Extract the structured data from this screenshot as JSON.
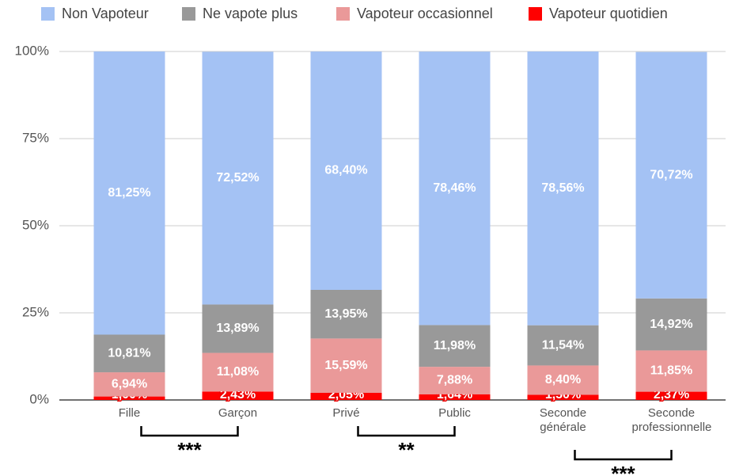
{
  "chart_data": {
    "type": "stacked_bar",
    "categories": [
      "Fille",
      "Garçon",
      "Privé",
      "Public",
      "Seconde générale",
      "Seconde professionnelle"
    ],
    "series": [
      {
        "name": "Non Vapoteur",
        "color": "#a4c2f4",
        "values": [
          81.25,
          72.52,
          68.4,
          78.46,
          78.56,
          70.72
        ],
        "value_labels": [
          "81,25%",
          "72,52%",
          "68,40%",
          "78,46%",
          "78,56%",
          "70,72%"
        ]
      },
      {
        "name": "Ne vapote plus",
        "color": "#999999",
        "values": [
          10.81,
          13.89,
          13.95,
          11.98,
          11.54,
          14.92
        ],
        "value_labels": [
          "10,81%",
          "13,89%",
          "13,95%",
          "11,98%",
          "11,54%",
          "14,92%"
        ]
      },
      {
        "name": "Vapoteur occasionnel",
        "color": "#ea9999",
        "values": [
          6.94,
          11.08,
          15.59,
          7.88,
          8.4,
          11.85
        ],
        "value_labels": [
          "6,94%",
          "11,08%",
          "15,59%",
          "7,88%",
          "8,40%",
          "11,85%"
        ]
      },
      {
        "name": "Vapoteur quotidien",
        "color": "#ff0000",
        "values": [
          1.0,
          2.43,
          2.05,
          1.64,
          1.5,
          2.37
        ],
        "value_labels": [
          "1,00%",
          "2,43%",
          "2,05%",
          "1,64%",
          "1,50%",
          "2,37%"
        ]
      }
    ],
    "ylim": [
      0,
      100
    ],
    "yticks": [
      {
        "value": 0,
        "label": "0%"
      },
      {
        "value": 25,
        "label": "25%"
      },
      {
        "value": 50,
        "label": "50%"
      },
      {
        "value": 75,
        "label": "75%"
      },
      {
        "value": 100,
        "label": "100%"
      }
    ],
    "grid": true,
    "legend": "top",
    "annotations": [
      {
        "text": "***",
        "between": [
          "Fille",
          "Garçon"
        ]
      },
      {
        "text": "**",
        "between": [
          "Privé",
          "Public"
        ]
      },
      {
        "text": "***",
        "between": [
          "Seconde générale",
          "Seconde professionnelle"
        ]
      }
    ]
  }
}
